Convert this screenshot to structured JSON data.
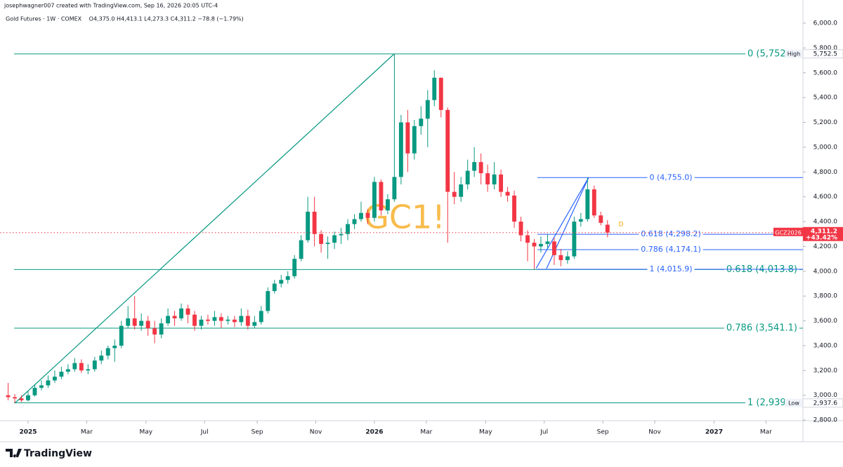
{
  "chart_data": {
    "type": "candlestick",
    "credit": "josephwagner007 created with TradingView.com, Sep 16, 2026 20:05 UTC-4",
    "title": "Gold Futures · 1W · COMEX",
    "ohlc_text": "O4,375.0 H4,413.1 L4,273.3 C4,311.2 −78.8 (−1.79%)",
    "watermark": "GC1!",
    "logo": "TradingView",
    "marker": "D",
    "up_color": "#089981",
    "down_color": "#f23645",
    "x": [
      -3,
      -2,
      -1,
      0,
      1,
      2,
      3,
      4,
      5,
      6,
      7,
      8,
      9,
      10,
      11,
      12,
      13,
      14,
      15,
      16,
      17,
      18,
      19,
      20,
      21,
      22,
      23,
      24,
      25,
      26,
      27,
      28,
      29,
      30,
      31,
      32,
      33,
      34,
      35,
      36,
      37,
      38,
      39,
      40,
      41,
      42,
      43,
      44,
      45,
      46,
      47,
      48,
      49,
      50,
      51,
      52,
      53,
      54,
      55,
      56,
      57,
      58,
      59,
      60,
      61,
      62,
      63,
      64,
      65,
      66,
      67,
      68,
      69,
      70,
      71,
      72,
      73,
      74,
      75,
      76,
      77,
      78,
      79,
      80,
      81,
      82,
      83,
      84,
      85,
      86,
      87
    ],
    "open": [
      3000,
      2985,
      2975,
      2960,
      3000,
      3060,
      3080,
      3120,
      3150,
      3190,
      3210,
      3260,
      3200,
      3210,
      3280,
      3320,
      3380,
      3400,
      3560,
      3620,
      3560,
      3600,
      3540,
      3490,
      3580,
      3640,
      3620,
      3700,
      3650,
      3560,
      3610,
      3600,
      3630,
      3600,
      3610,
      3590,
      3640,
      3560,
      3590,
      3680,
      3840,
      3900,
      3930,
      3960,
      4100,
      4250,
      4480,
      4300,
      4220,
      4230,
      4290,
      4300,
      4380,
      4420,
      4470,
      4430,
      4720,
      4490,
      4580,
      4760,
      5200,
      4950,
      5170,
      5230,
      5380,
      5560,
      5300,
      4640,
      4600,
      4700,
      4810,
      4880,
      4790,
      4700,
      4780,
      4640,
      4610,
      4400,
      4290,
      4230,
      4200,
      4220,
      4240,
      4130,
      4090,
      4120,
      4400,
      4420,
      4660,
      4450,
      4375
    ],
    "high": [
      3100,
      3010,
      3000,
      3030,
      3090,
      3120,
      3160,
      3200,
      3230,
      3250,
      3300,
      3290,
      3250,
      3310,
      3360,
      3400,
      3450,
      3600,
      3720,
      3800,
      3660,
      3640,
      3600,
      3620,
      3700,
      3680,
      3740,
      3730,
      3680,
      3640,
      3650,
      3680,
      3660,
      3640,
      3640,
      3700,
      3690,
      3640,
      3720,
      3870,
      3930,
      3970,
      4000,
      4130,
      4290,
      4600,
      4600,
      4330,
      4280,
      4320,
      4350,
      4420,
      4460,
      4560,
      4500,
      4760,
      4740,
      4620,
      5752.5,
      5260,
      5300,
      5220,
      5330,
      5460,
      5620,
      5560,
      5320,
      4800,
      4760,
      4900,
      5000,
      4950,
      4860,
      4880,
      4820,
      4680,
      4650,
      4440,
      4330,
      4260,
      4280,
      4300,
      4270,
      4180,
      4160,
      4440,
      4470,
      4755,
      4690,
      4480,
      4413.1
    ],
    "low": [
      2960,
      2937.6,
      2945,
      2950,
      2990,
      3040,
      3060,
      3100,
      3130,
      3170,
      3190,
      3180,
      3170,
      3190,
      3250,
      3290,
      3270,
      3380,
      3540,
      3530,
      3520,
      3480,
      3420,
      3460,
      3560,
      3560,
      3600,
      3580,
      3520,
      3530,
      3570,
      3560,
      3540,
      3570,
      3550,
      3560,
      3530,
      3540,
      3570,
      3660,
      3820,
      3870,
      3900,
      3940,
      4080,
      4230,
      4200,
      4150,
      4100,
      4180,
      4220,
      4250,
      4340,
      4400,
      4380,
      4400,
      4450,
      4460,
      4560,
      4700,
      4800,
      4900,
      5100,
      5000,
      5330,
      5240,
      4230,
      4540,
      4560,
      4660,
      4760,
      4700,
      4640,
      4660,
      4600,
      4560,
      4350,
      4240,
      4080,
      4015.9,
      4150,
      4180,
      4050,
      4040,
      4060,
      4100,
      4360,
      4400,
      4430,
      4370,
      4273.3
    ],
    "close": [
      2985,
      2975,
      2960,
      3000,
      3060,
      3080,
      3120,
      3150,
      3190,
      3210,
      3260,
      3200,
      3210,
      3280,
      3320,
      3380,
      3400,
      3560,
      3620,
      3560,
      3600,
      3540,
      3490,
      3580,
      3640,
      3620,
      3700,
      3650,
      3560,
      3610,
      3600,
      3630,
      3600,
      3610,
      3590,
      3640,
      3560,
      3590,
      3680,
      3840,
      3900,
      3930,
      3960,
      4100,
      4250,
      4480,
      4300,
      4220,
      4230,
      4290,
      4300,
      4380,
      4420,
      4470,
      4430,
      4720,
      4490,
      4580,
      4760,
      5200,
      4950,
      5170,
      5230,
      5380,
      5560,
      5300,
      4640,
      4600,
      4700,
      4810,
      4880,
      4790,
      4700,
      4780,
      4640,
      4610,
      4400,
      4290,
      4230,
      4200,
      4220,
      4240,
      4130,
      4090,
      4120,
      4400,
      4420,
      4660,
      4450,
      4390,
      4311.2
    ],
    "xlim": [
      -4.22,
      116.35
    ],
    "ylim": [
      2795,
      6186.5
    ],
    "xticks": [
      {
        "value": 0,
        "label": "2025"
      },
      {
        "value": 8.8,
        "label": "Mar"
      },
      {
        "value": 17.7,
        "label": "May"
      },
      {
        "value": 26.5,
        "label": "Jul"
      },
      {
        "value": 34.4,
        "label": "Sep"
      },
      {
        "value": 43.2,
        "label": "Nov"
      },
      {
        "value": 52,
        "label": "2026"
      },
      {
        "value": 59.8,
        "label": "Mar"
      },
      {
        "value": 68.7,
        "label": "May"
      },
      {
        "value": 77.5,
        "label": "Jul"
      },
      {
        "value": 86.3,
        "label": "Sep"
      },
      {
        "value": 94.1,
        "label": "Nov"
      },
      {
        "value": 103,
        "label": "2027"
      },
      {
        "value": 110.8,
        "label": "Mar"
      }
    ],
    "yticks": [
      {
        "value": 2800,
        "label": "2,800.0"
      },
      {
        "value": 3000,
        "label": "3,000.0"
      },
      {
        "value": 3200,
        "label": "3,200.0"
      },
      {
        "value": 3400,
        "label": "3,400.0"
      },
      {
        "value": 3600,
        "label": "3,600.0"
      },
      {
        "value": 3800,
        "label": "3,800.0"
      },
      {
        "value": 4000,
        "label": "4,000.0"
      },
      {
        "value": 4200,
        "label": "4,200.0"
      },
      {
        "value": 4400,
        "label": "4,400.0"
      },
      {
        "value": 4600,
        "label": "4,600.0"
      },
      {
        "value": 4800,
        "label": "4,800.0"
      },
      {
        "value": 5000,
        "label": "5,000.0"
      },
      {
        "value": 5200,
        "label": "5,200.0"
      },
      {
        "value": 5400,
        "label": "5,400.0"
      },
      {
        "value": 5600,
        "label": "5,600.0"
      },
      {
        "value": 5800,
        "label": "5,800.0"
      },
      {
        "value": 6000,
        "label": "6,000.0"
      }
    ],
    "grid": false,
    "fibs": [
      {
        "color": "#089981",
        "levels": [
          {
            "value": 5752,
            "label": "0 (5,752"
          },
          {
            "value": 4013.8,
            "label": "0.618 (4,013.8)"
          },
          {
            "value": 3541.1,
            "label": "0.786 (3,541.1)"
          },
          {
            "value": 2939,
            "label": "1 (2,939"
          }
        ]
      },
      {
        "color": "#2962ff",
        "levels": [
          {
            "value": 4755,
            "label": "0 (4,755.0)"
          },
          {
            "value": 4298.2,
            "label": "0.618 (4,298.2)"
          },
          {
            "value": 4174.1,
            "label": "0.786 (4,174.1)"
          },
          {
            "value": 4015.9,
            "label": "1 (4,015.9)"
          }
        ]
      }
    ],
    "price_badges": [
      {
        "name": "High",
        "value": 5752.5,
        "label": "5,752.5"
      },
      {
        "name": "Low",
        "value": 2937.6,
        "label": "2,937.6"
      }
    ],
    "last_price": {
      "symbol": "GCZ2026",
      "value": 4311.2,
      "label": "4,311.2",
      "change": "+43.42%"
    }
  }
}
